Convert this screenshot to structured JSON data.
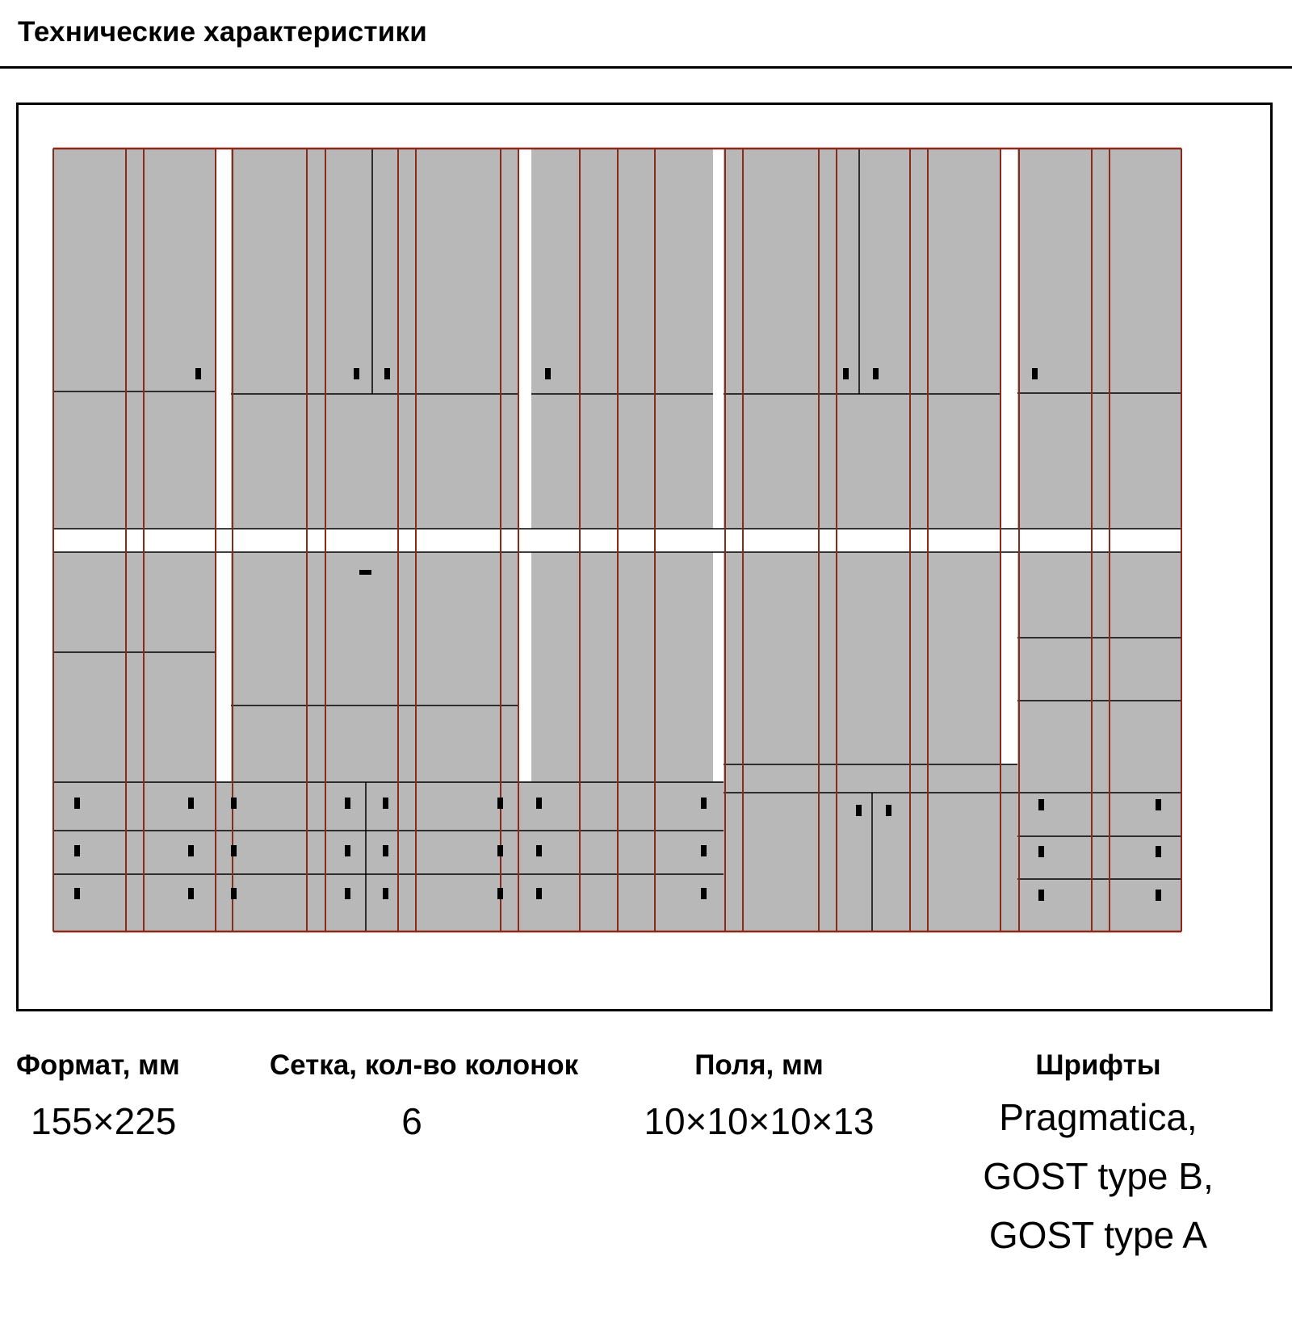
{
  "header": {
    "title": "Технические характеристики"
  },
  "specs": [
    {
      "label": "Формат, мм",
      "value": "155×225"
    },
    {
      "label": "Сетка, кол-во колонок",
      "value": "6"
    },
    {
      "label": "Поля, мм",
      "value": "10×10×10×13"
    },
    {
      "label": "Шрифты",
      "lines": [
        "Pragmatica,",
        "GOST type B,",
        "GOST type A"
      ]
    }
  ],
  "colors": {
    "guide": "#8b2a1a",
    "block": "#b8b8b8",
    "mark": "#000000",
    "frame": "#000000"
  }
}
